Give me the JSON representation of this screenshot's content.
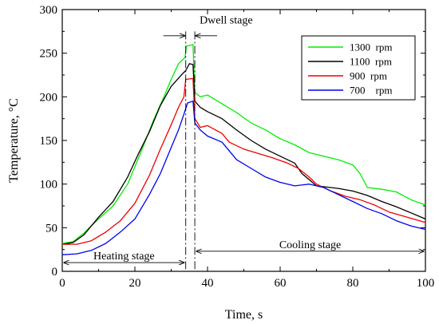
{
  "chart_data": {
    "type": "line",
    "xlabel": "Time, s",
    "ylabel": "Temperature, °C",
    "xlim": [
      0,
      100
    ],
    "ylim": [
      0,
      300
    ],
    "xticks": [
      0,
      20,
      40,
      60,
      80,
      100
    ],
    "yticks": [
      0,
      50,
      100,
      150,
      200,
      250,
      300
    ],
    "legend_position": "top-right",
    "series": [
      {
        "name": "1300  rpm",
        "color": "#00ee00",
        "points": [
          [
            0,
            32
          ],
          [
            3,
            34
          ],
          [
            6,
            44
          ],
          [
            10,
            60
          ],
          [
            14,
            75
          ],
          [
            18,
            100
          ],
          [
            22,
            140
          ],
          [
            25,
            172
          ],
          [
            28,
            200
          ],
          [
            30,
            220
          ],
          [
            32,
            238
          ],
          [
            33.8,
            245
          ],
          [
            34.2,
            258
          ],
          [
            36,
            260
          ],
          [
            36.5,
            205
          ],
          [
            38,
            200
          ],
          [
            40,
            202
          ],
          [
            44,
            192
          ],
          [
            48,
            182
          ],
          [
            52,
            170
          ],
          [
            56,
            162
          ],
          [
            60,
            152
          ],
          [
            64,
            145
          ],
          [
            68,
            136
          ],
          [
            72,
            132
          ],
          [
            76,
            128
          ],
          [
            80,
            122
          ],
          [
            82,
            112
          ],
          [
            84,
            96
          ],
          [
            88,
            94
          ],
          [
            92,
            91
          ],
          [
            96,
            82
          ],
          [
            100,
            76
          ]
        ]
      },
      {
        "name": "1100  rpm",
        "color": "#000000",
        "points": [
          [
            0,
            31
          ],
          [
            3,
            33
          ],
          [
            6,
            42
          ],
          [
            10,
            62
          ],
          [
            14,
            80
          ],
          [
            18,
            108
          ],
          [
            21,
            135
          ],
          [
            24,
            160
          ],
          [
            27,
            190
          ],
          [
            30,
            212
          ],
          [
            33,
            226
          ],
          [
            34,
            230
          ],
          [
            35,
            238
          ],
          [
            36,
            237
          ],
          [
            36.5,
            195
          ],
          [
            38,
            188
          ],
          [
            40,
            183
          ],
          [
            44,
            175
          ],
          [
            48,
            162
          ],
          [
            52,
            150
          ],
          [
            56,
            140
          ],
          [
            60,
            132
          ],
          [
            64,
            124
          ],
          [
            66,
            112
          ],
          [
            70,
            98
          ],
          [
            76,
            95
          ],
          [
            80,
            92
          ],
          [
            84,
            87
          ],
          [
            88,
            80
          ],
          [
            92,
            74
          ],
          [
            96,
            67
          ],
          [
            100,
            60
          ]
        ]
      },
      {
        "name": "900  rpm",
        "color": "#ee0000",
        "points": [
          [
            0,
            31
          ],
          [
            4,
            31
          ],
          [
            8,
            35
          ],
          [
            12,
            45
          ],
          [
            16,
            58
          ],
          [
            20,
            78
          ],
          [
            24,
            110
          ],
          [
            27,
            140
          ],
          [
            30,
            168
          ],
          [
            32,
            188
          ],
          [
            33.5,
            200
          ],
          [
            34,
            220
          ],
          [
            36,
            221
          ],
          [
            36.5,
            175
          ],
          [
            38,
            165
          ],
          [
            40,
            167
          ],
          [
            44,
            158
          ],
          [
            46,
            148
          ],
          [
            50,
            140
          ],
          [
            54,
            135
          ],
          [
            58,
            130
          ],
          [
            62,
            124
          ],
          [
            65,
            118
          ],
          [
            68,
            108
          ],
          [
            70,
            100
          ],
          [
            74,
            92
          ],
          [
            78,
            86
          ],
          [
            82,
            82
          ],
          [
            86,
            76
          ],
          [
            90,
            68
          ],
          [
            95,
            62
          ],
          [
            100,
            56
          ]
        ]
      },
      {
        "name": "700    rpm",
        "color": "#0000ee",
        "points": [
          [
            0,
            19
          ],
          [
            4,
            20
          ],
          [
            8,
            24
          ],
          [
            12,
            32
          ],
          [
            16,
            45
          ],
          [
            20,
            60
          ],
          [
            24,
            88
          ],
          [
            27,
            112
          ],
          [
            30,
            142
          ],
          [
            32,
            162
          ],
          [
            33.5,
            180
          ],
          [
            34.5,
            193
          ],
          [
            36,
            195
          ],
          [
            36.5,
            170
          ],
          [
            38,
            162
          ],
          [
            40,
            155
          ],
          [
            44,
            148
          ],
          [
            48,
            128
          ],
          [
            52,
            118
          ],
          [
            56,
            108
          ],
          [
            60,
            102
          ],
          [
            64,
            98
          ],
          [
            68,
            100
          ],
          [
            72,
            96
          ],
          [
            76,
            88
          ],
          [
            80,
            80
          ],
          [
            84,
            72
          ],
          [
            88,
            66
          ],
          [
            92,
            58
          ],
          [
            96,
            52
          ],
          [
            100,
            48
          ]
        ]
      }
    ],
    "annotations": {
      "dwell_label": "Dwell stage",
      "heating_label": "Heating stage",
      "cooling_label": "Cooling stage",
      "dwell_start_x": 34,
      "dwell_end_x": 36.5
    }
  }
}
